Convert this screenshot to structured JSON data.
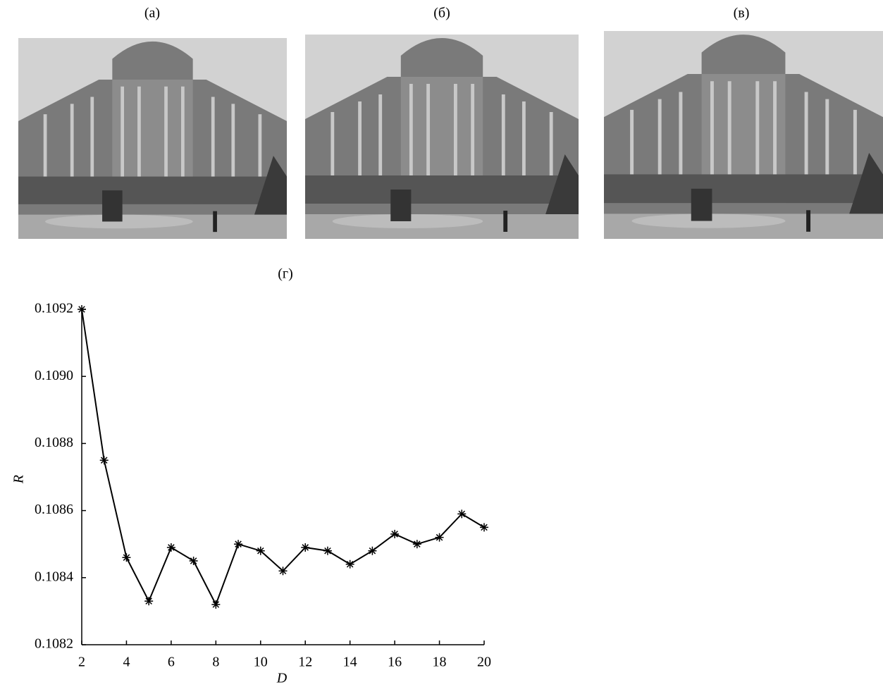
{
  "panels": [
    {
      "label": "(а)"
    },
    {
      "label": "(б)"
    },
    {
      "label": "(в)"
    }
  ],
  "chart_data": {
    "type": "line",
    "title": "(г)",
    "xlabel": "D",
    "ylabel": "R",
    "x": [
      2,
      3,
      4,
      5,
      6,
      7,
      8,
      9,
      10,
      11,
      12,
      13,
      14,
      15,
      16,
      17,
      18,
      19,
      20
    ],
    "series": [
      {
        "name": "R",
        "color": "#000000",
        "values": [
          0.1092,
          0.10875,
          0.10846,
          0.10833,
          0.10849,
          0.10845,
          0.10832,
          0.1085,
          0.10848,
          0.10842,
          0.10849,
          0.10848,
          0.10844,
          0.10848,
          0.10853,
          0.1085,
          0.10852,
          0.10859,
          0.10855
        ]
      }
    ],
    "xlim": [
      2,
      20
    ],
    "ylim": [
      0.1082,
      0.1092
    ],
    "xticks": [
      2,
      4,
      6,
      8,
      10,
      12,
      14,
      16,
      18,
      20
    ],
    "yticks": [
      0.1082,
      0.1084,
      0.1086,
      0.1088,
      {
        "value": 0.109,
        "label": "0.1090"
      },
      0.1092
    ],
    "marker": "asterisk"
  }
}
